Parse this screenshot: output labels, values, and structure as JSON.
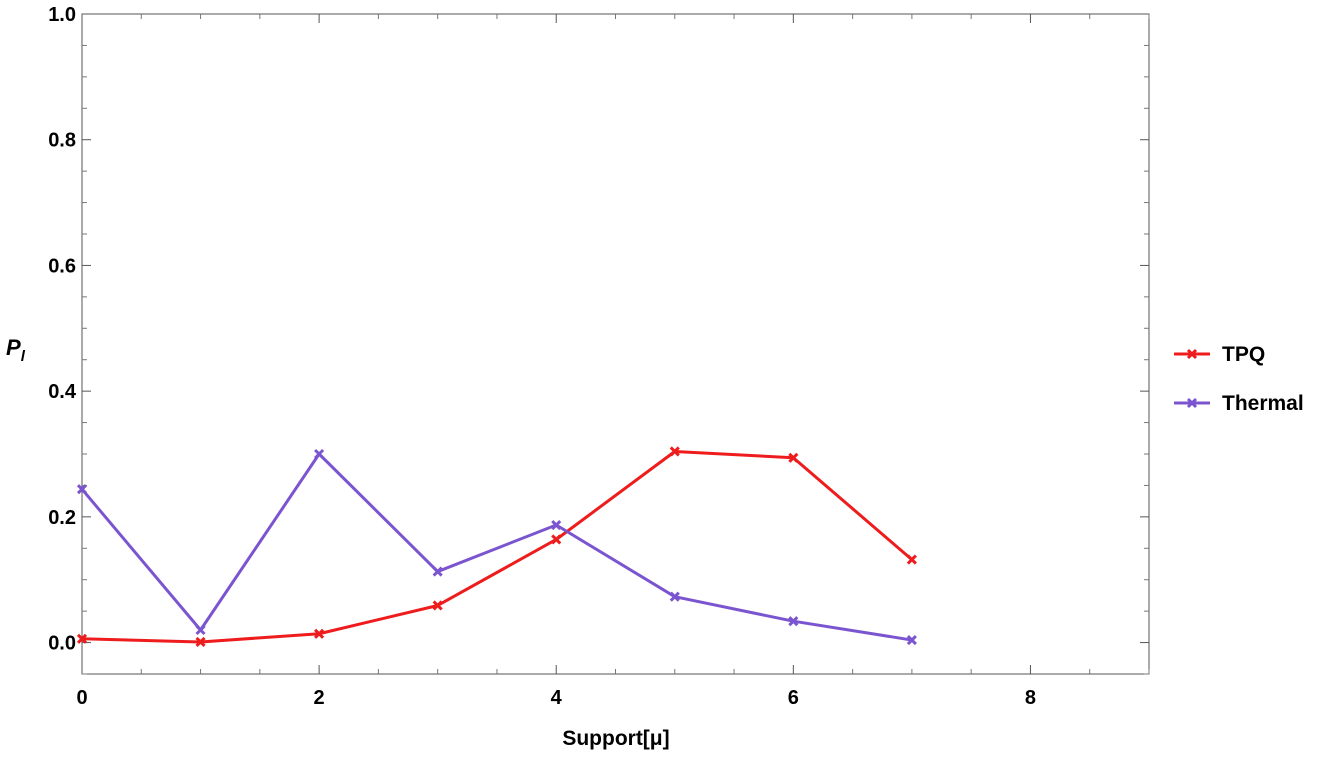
{
  "chart_data": {
    "type": "line",
    "title": "",
    "xlabel": "Support[μ]",
    "ylabel": "P_l",
    "xlim": [
      0,
      9
    ],
    "ylim": [
      -0.05,
      1.0
    ],
    "xticks": [
      0,
      2,
      4,
      6,
      8
    ],
    "xtick_labels": [
      "0",
      "2",
      "4",
      "6",
      "8"
    ],
    "yticks": [
      0.0,
      0.2,
      0.4,
      0.6,
      0.8,
      1.0
    ],
    "ytick_labels": [
      "0.0",
      "0.2",
      "0.4",
      "0.6",
      "0.8",
      "1.0"
    ],
    "grid": false,
    "frame": true,
    "legend_position": "right",
    "marker": "x",
    "x": [
      0,
      1,
      2,
      3,
      4,
      5,
      6,
      7
    ],
    "series": [
      {
        "name": "TPQ",
        "color": "#ee1c1c",
        "values": [
          0.006,
          0.001,
          0.014,
          0.059,
          0.164,
          0.304,
          0.294,
          0.132
        ]
      },
      {
        "name": "Thermal",
        "color": "#7b55cf",
        "values": [
          0.244,
          0.02,
          0.3,
          0.113,
          0.187,
          0.073,
          0.034,
          0.004
        ]
      }
    ]
  }
}
